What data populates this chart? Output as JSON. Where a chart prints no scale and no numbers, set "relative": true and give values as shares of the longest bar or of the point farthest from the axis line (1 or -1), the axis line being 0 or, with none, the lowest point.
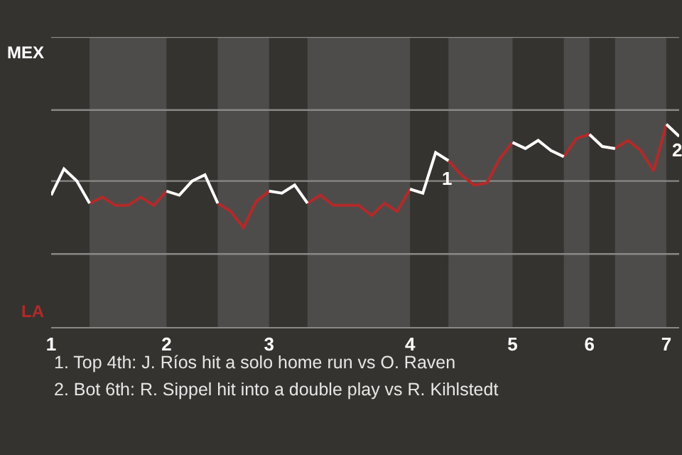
{
  "chart_data": {
    "type": "line",
    "relative": true,
    "categories": [
      "1",
      null,
      null,
      null,
      null,
      null,
      null,
      null,
      null,
      "2",
      null,
      null,
      null,
      null,
      null,
      null,
      null,
      "3",
      null,
      null,
      null,
      null,
      null,
      null,
      null,
      null,
      null,
      null,
      "4",
      null,
      null,
      null,
      null,
      null,
      null,
      null,
      "5",
      null,
      null,
      null,
      null,
      null,
      "6",
      null,
      null,
      null,
      null,
      null,
      "7",
      null
    ],
    "series": [
      {
        "color": "#b22a2a",
        "values": [
          null,
          null,
          null,
          0.61,
          0.64,
          0.6,
          0.6,
          0.64,
          0.6,
          0.67,
          null,
          null,
          null,
          0.61,
          0.57,
          0.49,
          0.62,
          0.67,
          null,
          null,
          0.61,
          0.65,
          0.6,
          0.6,
          0.6,
          0.55,
          0.61,
          0.57,
          0.68,
          null,
          null,
          0.82,
          0.75,
          0.7,
          0.71,
          0.83,
          0.91,
          null,
          null,
          null,
          0.84,
          0.93,
          0.95,
          null,
          0.88,
          0.92,
          0.87,
          0.77,
          1.0,
          null
        ]
      },
      {
        "color": "#ffffff",
        "values": [
          0.65,
          0.78,
          0.72,
          0.61,
          null,
          null,
          null,
          null,
          null,
          0.67,
          0.65,
          0.72,
          0.75,
          0.61,
          null,
          null,
          null,
          0.67,
          0.66,
          0.7,
          0.61,
          null,
          null,
          null,
          null,
          null,
          null,
          null,
          0.68,
          0.66,
          0.86,
          0.82,
          null,
          null,
          null,
          null,
          0.91,
          0.88,
          0.92,
          0.87,
          0.84,
          null,
          0.95,
          0.89,
          0.88,
          null,
          null,
          null,
          1.0,
          0.94
        ]
      }
    ],
    "ref_lines": [
      {
        "axis": "y",
        "value": 0.36,
        "color": "#8a8886"
      },
      {
        "axis": "y",
        "value": 0.72,
        "color": "#8a8886"
      },
      {
        "axis": "y",
        "value": 1.07,
        "color": "#8a8886"
      },
      {
        "axis": "y",
        "value": 1.43,
        "color": "#8a8886"
      }
    ],
    "marker": "none",
    "line_style": "solid",
    "annotations": [
      {
        "text": "1",
        "y": 0.86
      },
      {
        "text": "2",
        "x": "7",
        "y": 1.0
      },
      "LA",
      "MEX",
      "1. Top 4th: J. Ríos hit a solo home run vs O. Raven",
      "2. Bot 6th: R. Sippel hit into a double play vs R. Kihlstedt"
    ]
  }
}
